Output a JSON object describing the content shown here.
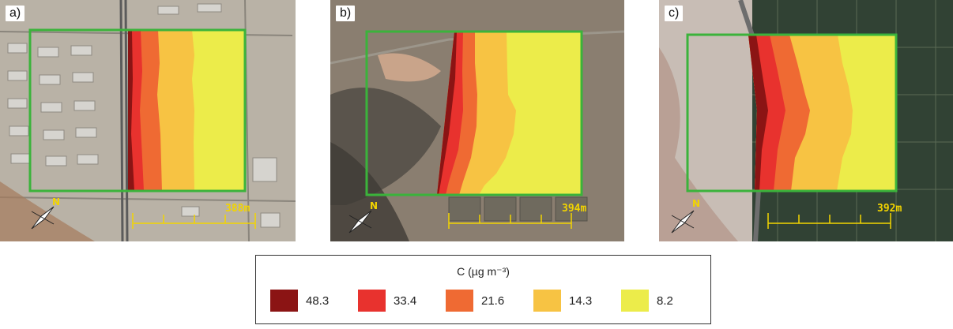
{
  "panels": [
    {
      "label": "a)",
      "scale": "388m",
      "north": "N"
    },
    {
      "label": "b)",
      "scale": "394m",
      "north": "N"
    },
    {
      "label": "c)",
      "scale": "392m",
      "north": "N"
    }
  ],
  "legend": {
    "title": "C (µg m⁻³)",
    "items": [
      {
        "value": "48.3",
        "color": "#8b1414"
      },
      {
        "value": "33.4",
        "color": "#e8322e"
      },
      {
        "value": "21.6",
        "color": "#ef6a33"
      },
      {
        "value": "14.3",
        "color": "#f7c343"
      },
      {
        "value": "8.2",
        "color": "#ecec4a"
      }
    ]
  },
  "colors": {
    "domain_border": "#3bb33b",
    "scale_bar": "#f2d400"
  }
}
